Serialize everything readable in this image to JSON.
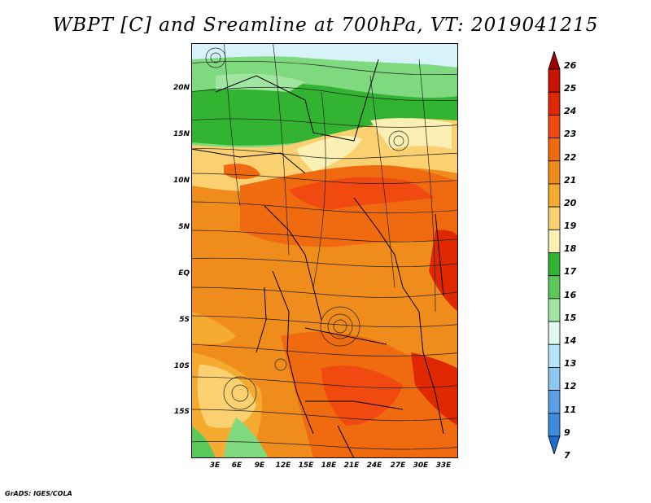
{
  "title": "WBPT [C] and Sreamline at 700hPa, VT: 2019041215",
  "credit": "GrADS: IGES/COLA",
  "map": {
    "lat_labels": [
      "20N",
      "15N",
      "10N",
      "5N",
      "EQ",
      "5S",
      "10S",
      "15S"
    ],
    "lon_labels": [
      "3E",
      "6E",
      "9E",
      "12E",
      "15E",
      "18E",
      "21E",
      "24E",
      "27E",
      "30E",
      "33E"
    ],
    "lat_values": [
      20,
      15,
      10,
      5,
      0,
      -5,
      -10,
      -15
    ],
    "lon_values": [
      3,
      6,
      9,
      12,
      15,
      18,
      21,
      24,
      27,
      30,
      33
    ]
  },
  "colorbar": {
    "labels": [
      "26",
      "25",
      "24",
      "23",
      "22",
      "21",
      "20",
      "19",
      "18",
      "17",
      "16",
      "15",
      "14",
      "13",
      "12",
      "11",
      "9",
      "7"
    ],
    "colors": [
      "#a00000",
      "#c81400",
      "#e02800",
      "#f04a10",
      "#f06a10",
      "#f08c1c",
      "#f5aa30",
      "#fad070",
      "#fbf0b4",
      "#32b432",
      "#5ac85a",
      "#a0e6a0",
      "#e0f8f0",
      "#b4e6fa",
      "#8cc8f0",
      "#5aa0e6",
      "#3c8ce0",
      "#1e6ed2"
    ]
  }
}
